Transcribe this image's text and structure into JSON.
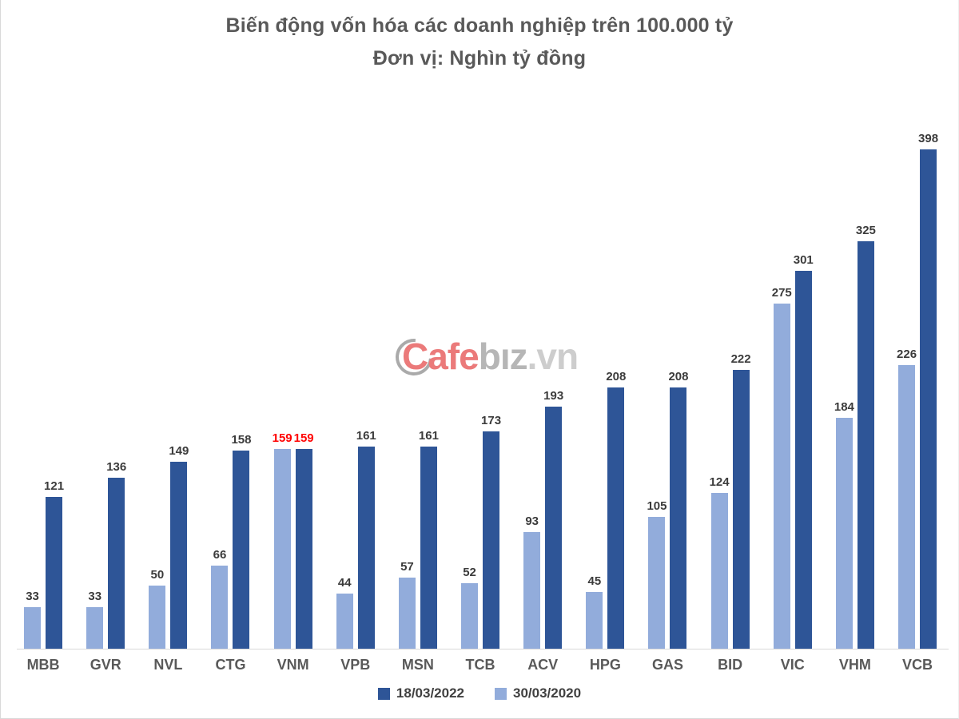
{
  "title": {
    "line1": "Biến động vốn hóa các doanh nghiệp trên 100.000 tỷ",
    "line2": "Đơn vị: Nghìn tỷ đồng"
  },
  "watermark": {
    "cafe": "Cafe",
    "biz": "bız",
    "vn": ".vn"
  },
  "legend": {
    "items": [
      {
        "label": "18/03/2022",
        "color": "#2e5597"
      },
      {
        "label": "30/03/2020",
        "color": "#92acdb"
      }
    ]
  },
  "chart_data": {
    "type": "bar",
    "title": "Biến động vốn hóa các doanh nghiệp trên 100.000 tỷ",
    "subtitle": "Đơn vị: Nghìn tỷ đồng",
    "unit": "Nghìn tỷ đồng",
    "categories": [
      "MBB",
      "GVR",
      "NVL",
      "CTG",
      "VNM",
      "VPB",
      "MSN",
      "TCB",
      "ACV",
      "HPG",
      "GAS",
      "BID",
      "VIC",
      "VHM",
      "VCB"
    ],
    "series": [
      {
        "name": "30/03/2020",
        "color": "#92acdb",
        "values": [
          33,
          33,
          50,
          66,
          159,
          44,
          57,
          52,
          93,
          45,
          105,
          124,
          275,
          184,
          226
        ]
      },
      {
        "name": "18/03/2022",
        "color": "#2e5597",
        "values": [
          121,
          136,
          149,
          158,
          159,
          161,
          161,
          173,
          193,
          208,
          208,
          222,
          301,
          325,
          398
        ]
      }
    ],
    "bar_draw_order": [
      "30/03/2020",
      "18/03/2022"
    ],
    "legend_order": [
      "18/03/2022",
      "30/03/2020"
    ],
    "data_labels": true,
    "label_color": "#3b3b3b",
    "highlighted_category": "VNM",
    "highlight_label_color": "#ff0000",
    "axis_label_color": "#595959",
    "ylim": [
      0,
      420
    ],
    "grid": false,
    "legend_position": "bottom"
  }
}
